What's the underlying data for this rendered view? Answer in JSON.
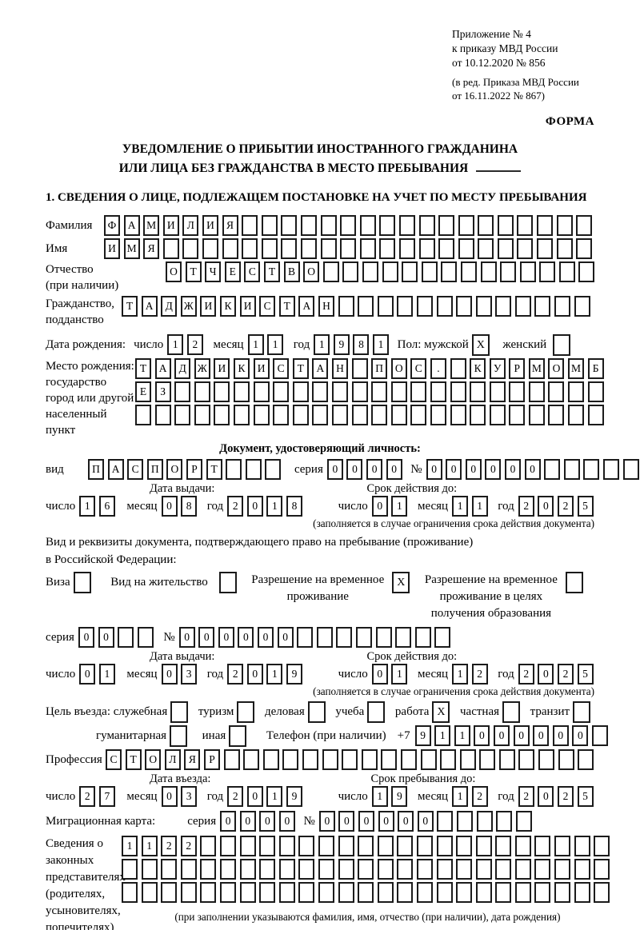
{
  "doc": {
    "appendix": "Приложение № 4\nк приказу МВД России\nот 10.12.2020 № 856",
    "amendment": "(в ред. Приказа МВД России\nот 16.11.2022 № 867)",
    "form_label": "ФОРМА",
    "title_line1": "УВЕДОМЛЕНИЕ О ПРИБЫТИИ ИНОСТРАННОГО ГРАЖДАНИНА",
    "title_line2": "ИЛИ ЛИЦА БЕЗ ГРАЖДАНСТВА В МЕСТО ПРЕБЫВАНИЯ",
    "section1_heading": "1. СВЕДЕНИЯ О ЛИЦЕ, ПОДЛЕЖАЩЕМ ПОСТАНОВКЕ НА УЧЕТ ПО МЕСТУ ПРЕБЫВАНИЯ"
  },
  "labels": {
    "surname": "Фамилия",
    "given_name": "Имя",
    "patronymic": "Отчество\n(при наличии)",
    "citizenship": "Гражданство,\nподданство",
    "birth_date": "Дата рождения:",
    "day": "число",
    "month": "месяц",
    "year": "год",
    "sex_male": "Пол: мужской",
    "sex_female": "женский",
    "birth_place": "Место рождения:\nгосударство\nгород или другой\nнаселенный пункт",
    "identity_doc_heading": "Документ, удостоверяющий личность:",
    "doc_kind": "вид",
    "series": "серия",
    "number_sign": "№",
    "issue_date": "Дата выдачи:",
    "valid_until": "Срок действия до:",
    "validity_note": "(заполняется в случае ограничения срока действия документа)",
    "residence_doc_text": "Вид и реквизиты документа, подтверждающего право на пребывание (проживание)\nв Российской Федерации:",
    "visa": "Виза",
    "residence_permit": "Вид на жительство",
    "temp_residence": "Разрешение на временное\nпроживание",
    "temp_residence_edu": "Разрешение на временное\nпроживание в целях\nполучения образования",
    "entry_purpose": "Цель въезда: служебная",
    "tourism": "туризм",
    "business": "деловая",
    "study": "учеба",
    "work": "работа",
    "private": "частная",
    "transit": "транзит",
    "humanitarian": "гуманитарная",
    "other": "иная",
    "phone": "Телефон (при наличии)",
    "phone_prefix": "+7",
    "profession": "Профессия",
    "entry_date": "Дата въезда:",
    "stay_until": "Срок пребывания до:",
    "migration_card": "Миграционная карта:",
    "representatives": "Сведения о\nзаконных\nпредставителях\n(родителях,\nусыновителях,\nпопечителях)",
    "representatives_note": "(при заполнении указываются фамилия, имя, отчество (при наличии), дата рождения)"
  },
  "cells": {
    "surname": {
      "value": "ФАМИЛИЯ",
      "len": 25
    },
    "given_name": {
      "value": "ИМЯ",
      "len": 25
    },
    "patronymic": {
      "value": "ОТЧЕСТВО",
      "len": 22
    },
    "citizenship": {
      "value": "ТАДЖИКИСТАН",
      "len": 24
    },
    "birth_day": {
      "value": "12",
      "len": 2
    },
    "birth_month": {
      "value": "11",
      "len": 2
    },
    "birth_year": {
      "value": "1981",
      "len": 4
    },
    "sex_male_cb": {
      "value": "X",
      "len": 1
    },
    "sex_female_cb": {
      "value": "",
      "len": 1
    },
    "birth_place_row1": {
      "value": "ТАДЖИКИСТАН ПОС. КУРМОМБ",
      "len": 24
    },
    "birth_place_row2": {
      "value": "ЕЗ",
      "len": 24
    },
    "birth_place_row3": {
      "value": "",
      "len": 24
    },
    "passport_kind": {
      "value": "ПАСПОРТ",
      "len": 10
    },
    "passport_series": {
      "value": "0000",
      "len": 4
    },
    "passport_number": {
      "value": "000000",
      "len": 11
    },
    "passport_issue_day": {
      "value": "16",
      "len": 2
    },
    "passport_issue_month": {
      "value": "08",
      "len": 2
    },
    "passport_issue_year": {
      "value": "2018",
      "len": 4
    },
    "passport_valid_day": {
      "value": "01",
      "len": 2
    },
    "passport_valid_month": {
      "value": "11",
      "len": 2
    },
    "passport_valid_year": {
      "value": "2025",
      "len": 4
    },
    "visa_cb": {
      "value": "",
      "len": 1
    },
    "residence_permit_cb": {
      "value": "",
      "len": 1
    },
    "temp_residence_cb": {
      "value": "X",
      "len": 1
    },
    "temp_residence_edu_cb": {
      "value": "",
      "len": 1
    },
    "res_doc_series": {
      "value": "00",
      "len": 4
    },
    "res_doc_number": {
      "value": "000000",
      "len": 14
    },
    "res_issue_day": {
      "value": "01",
      "len": 2
    },
    "res_issue_month": {
      "value": "03",
      "len": 2
    },
    "res_issue_year": {
      "value": "2019",
      "len": 4
    },
    "res_valid_day": {
      "value": "01",
      "len": 2
    },
    "res_valid_month": {
      "value": "12",
      "len": 2
    },
    "res_valid_year": {
      "value": "2025",
      "len": 4
    },
    "purpose_official_cb": {
      "value": "",
      "len": 1
    },
    "purpose_tourism_cb": {
      "value": "",
      "len": 1
    },
    "purpose_business_cb": {
      "value": "",
      "len": 1
    },
    "purpose_study_cb": {
      "value": "",
      "len": 1
    },
    "purpose_work_cb": {
      "value": "X",
      "len": 1
    },
    "purpose_private_cb": {
      "value": "",
      "len": 1
    },
    "purpose_transit_cb": {
      "value": "",
      "len": 1
    },
    "purpose_humanitarian_cb": {
      "value": "",
      "len": 1
    },
    "purpose_other_cb": {
      "value": "",
      "len": 1
    },
    "phone_number": {
      "value": "911000000",
      "len": 10
    },
    "profession": {
      "value": "СТОЛЯР",
      "len": 25
    },
    "entry_day": {
      "value": "27",
      "len": 2
    },
    "entry_month": {
      "value": "03",
      "len": 2
    },
    "entry_year": {
      "value": "2019",
      "len": 4
    },
    "stay_day": {
      "value": "19",
      "len": 2
    },
    "stay_month": {
      "value": "12",
      "len": 2
    },
    "stay_year": {
      "value": "2025",
      "len": 4
    },
    "migration_series": {
      "value": "0000",
      "len": 4
    },
    "migration_number": {
      "value": "000000",
      "len": 11
    },
    "representatives_row1": {
      "value": "1122",
      "len": 25
    },
    "representatives_row2": {
      "value": "",
      "len": 25
    },
    "representatives_row3": {
      "value": "",
      "len": 25
    }
  }
}
